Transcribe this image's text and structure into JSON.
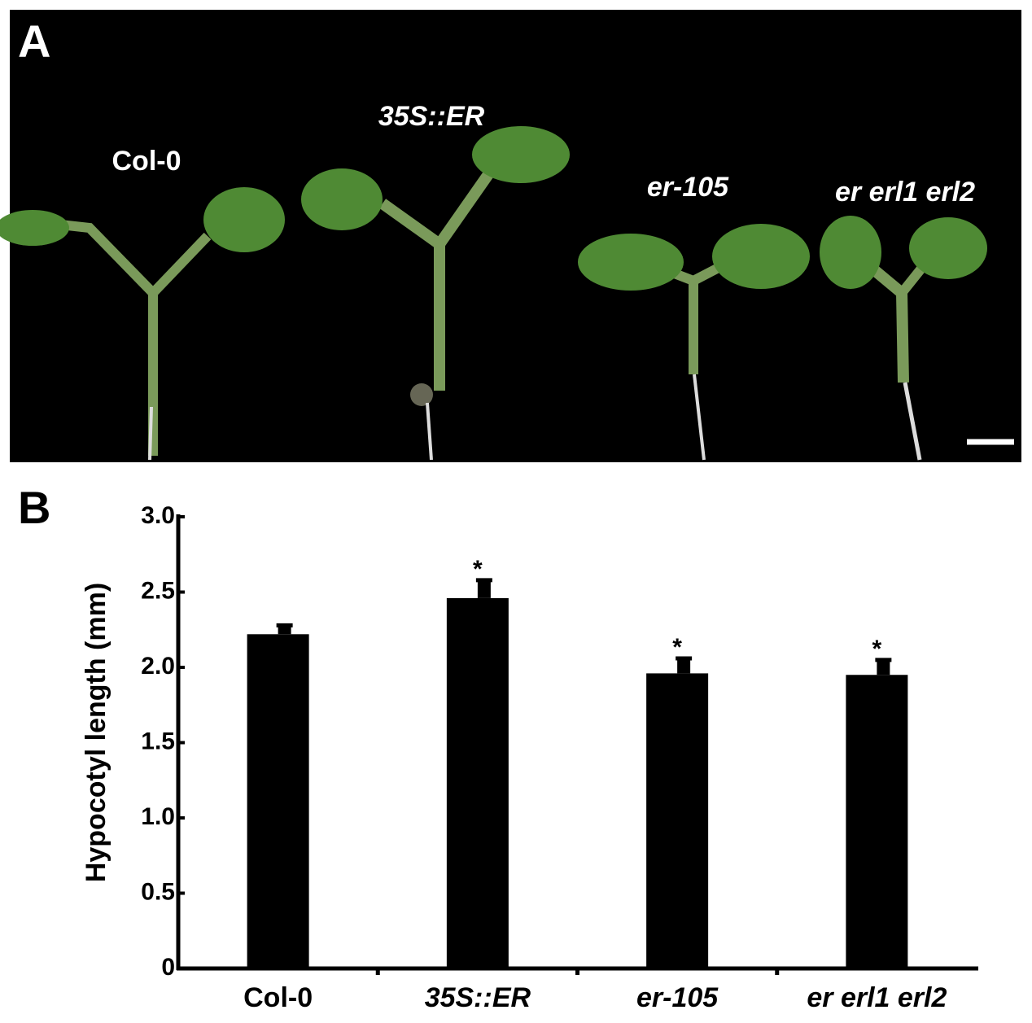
{
  "panel_a": {
    "label": "A",
    "genotype_labels": [
      "Col-0",
      "35S::ER",
      "er-105",
      "er erl1 erl2"
    ]
  },
  "chart_data": {
    "panel_label": "B",
    "type": "bar",
    "y_label": "Hypocotyl length (mm)",
    "categories": [
      "Col-0",
      "35S::ER",
      "er-105",
      "er erl1 erl2"
    ],
    "values": [
      2.22,
      2.46,
      1.96,
      1.95
    ],
    "errors": [
      0.07,
      0.13,
      0.11,
      0.11
    ],
    "significance": [
      null,
      "*",
      "*",
      "*"
    ],
    "color": "#000000",
    "ylim": [
      0,
      3
    ],
    "yticks": [
      0,
      0.5,
      {
        "value": 1,
        "label": "1.0"
      },
      1.5,
      {
        "value": 2,
        "label": "2.0"
      },
      2.5,
      {
        "value": 3,
        "label": "3.0"
      }
    ]
  }
}
